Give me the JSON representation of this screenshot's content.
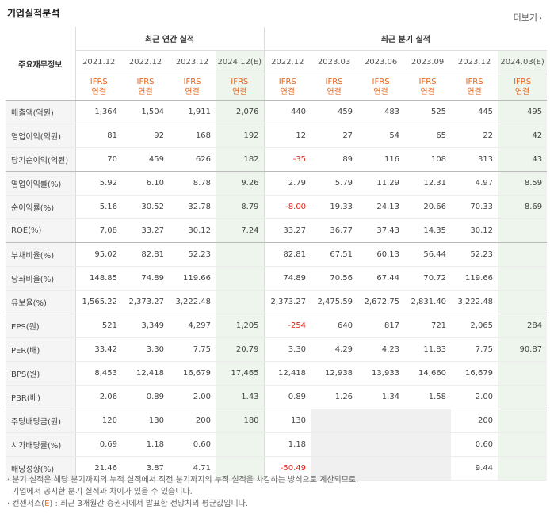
{
  "header": {
    "title": "기업실적분석",
    "more_label": "더보기",
    "more_icon": "chevron-right-icon"
  },
  "table": {
    "corner_label": "주요재무정보",
    "groups": {
      "annual": "최근 연간 실적",
      "quarter": "최근 분기 실적"
    },
    "periods": [
      "2021.12",
      "2022.12",
      "2023.12",
      "2024.12(E)",
      "2022.12",
      "2023.03",
      "2023.06",
      "2023.09",
      "2023.12",
      "2024.03(E)"
    ],
    "standard": {
      "line1": "IFRS",
      "line2": "연결"
    },
    "rows": [
      {
        "label": "매출액(억원)",
        "values": [
          "1,364",
          "1,504",
          "1,911",
          "2,076",
          "440",
          "459",
          "483",
          "525",
          "445",
          "495"
        ]
      },
      {
        "label": "영업이익(억원)",
        "values": [
          "81",
          "92",
          "168",
          "192",
          "12",
          "27",
          "54",
          "65",
          "22",
          "42"
        ]
      },
      {
        "label": "당기순이익(억원)",
        "values": [
          "70",
          "459",
          "626",
          "182",
          "-35",
          "89",
          "116",
          "108",
          "313",
          "43"
        ]
      },
      {
        "label": "영업이익률(%)",
        "values": [
          "5.92",
          "6.10",
          "8.78",
          "9.26",
          "2.79",
          "5.79",
          "11.29",
          "12.31",
          "4.97",
          "8.59"
        ]
      },
      {
        "label": "순이익률(%)",
        "values": [
          "5.16",
          "30.52",
          "32.78",
          "8.79",
          "-8.00",
          "19.33",
          "24.13",
          "20.66",
          "70.33",
          "8.69"
        ]
      },
      {
        "label": "ROE(%)",
        "values": [
          "7.08",
          "33.27",
          "30.12",
          "7.24",
          "33.27",
          "36.77",
          "37.43",
          "14.35",
          "30.12",
          ""
        ]
      },
      {
        "label": "부채비율(%)",
        "values": [
          "95.02",
          "82.81",
          "52.23",
          "",
          "82.81",
          "67.51",
          "60.13",
          "56.44",
          "52.23",
          ""
        ]
      },
      {
        "label": "당좌비율(%)",
        "values": [
          "148.85",
          "74.89",
          "119.66",
          "",
          "74.89",
          "70.56",
          "67.44",
          "70.72",
          "119.66",
          ""
        ]
      },
      {
        "label": "유보율(%)",
        "values": [
          "1,565.22",
          "2,373.27",
          "3,222.48",
          "",
          "2,373.27",
          "2,475.59",
          "2,672.75",
          "2,831.40",
          "3,222.48",
          ""
        ]
      },
      {
        "label": "EPS(원)",
        "values": [
          "521",
          "3,349",
          "4,297",
          "1,205",
          "-254",
          "640",
          "817",
          "721",
          "2,065",
          "284"
        ]
      },
      {
        "label": "PER(배)",
        "values": [
          "33.42",
          "3.30",
          "7.75",
          "20.79",
          "3.30",
          "4.29",
          "4.23",
          "11.83",
          "7.75",
          "90.87"
        ]
      },
      {
        "label": "BPS(원)",
        "values": [
          "8,453",
          "12,418",
          "16,679",
          "17,465",
          "12,418",
          "12,938",
          "13,933",
          "14,660",
          "16,679",
          ""
        ]
      },
      {
        "label": "PBR(배)",
        "values": [
          "2.06",
          "0.89",
          "2.00",
          "1.43",
          "0.89",
          "1.26",
          "1.34",
          "1.58",
          "2.00",
          ""
        ]
      },
      {
        "label": "주당배당금(원)",
        "values": [
          "120",
          "130",
          "200",
          "180",
          "130",
          "",
          "",
          "",
          "200",
          ""
        ]
      },
      {
        "label": "시가배당률(%)",
        "values": [
          "0.69",
          "1.18",
          "0.60",
          "",
          "1.18",
          "",
          "",
          "",
          "0.60",
          ""
        ]
      },
      {
        "label": "배당성향(%)",
        "values": [
          "21.46",
          "3.87",
          "4.71",
          "",
          "-50.49",
          "",
          "",
          "",
          "9.44",
          ""
        ]
      }
    ]
  },
  "notes": {
    "line1": "· 분기 실적은 해당 분기까지의 누적 실적에서 직전 분기까지의 누적 실적을 차감하는 방식으로 계산되므로,",
    "line2": "기업에서 공시한 분기 실적과 차이가 있을 수 있습니다.",
    "line3_prefix": "· 컨센서스(",
    "line3_mark": "E",
    "line3_suffix": ") : 최근 3개월간 증권사에서 발표한 전망치의 평균값입니다."
  }
}
